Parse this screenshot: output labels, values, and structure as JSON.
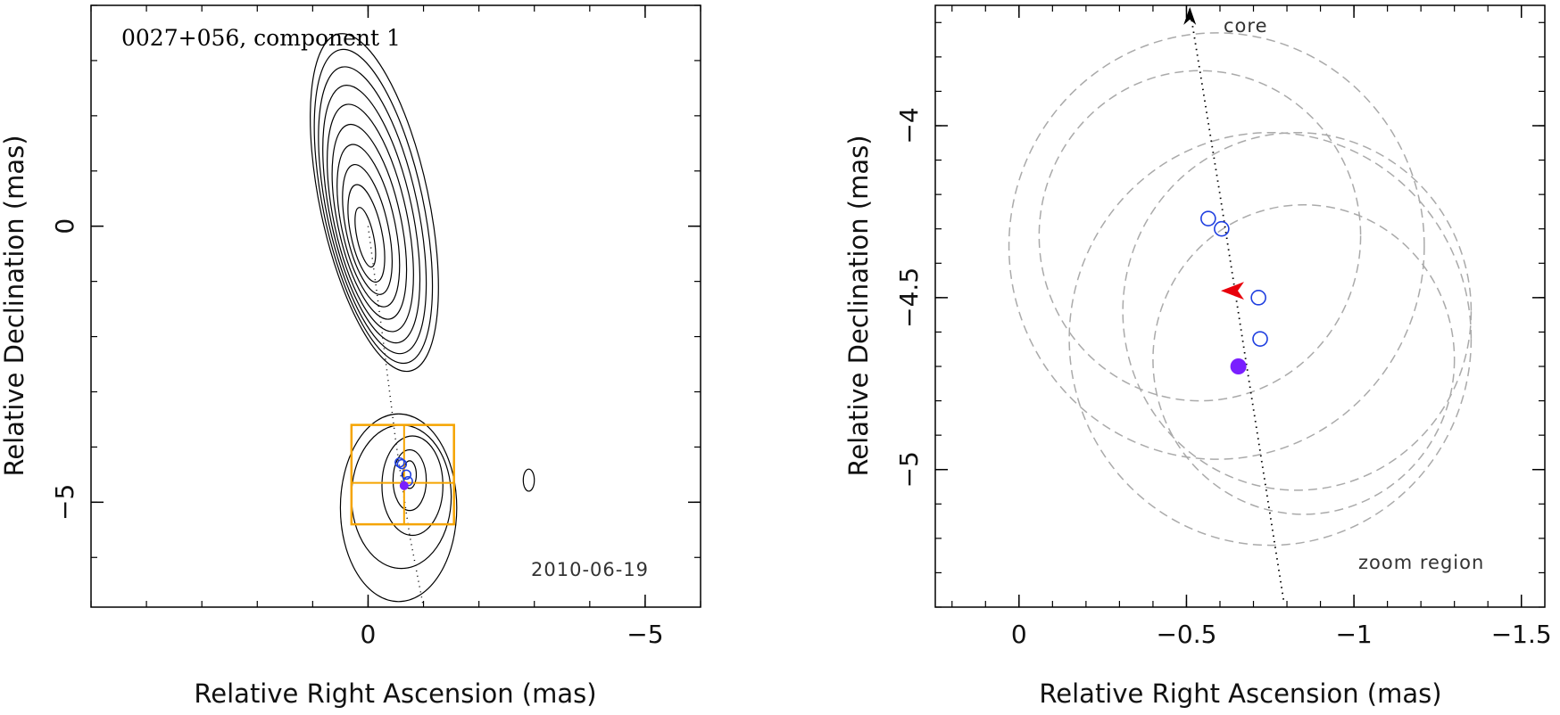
{
  "colors": {
    "contour": "#000000",
    "zoom_box": "#f5a400",
    "component_open": "#1f3fe0",
    "component_filled": "#7a1fff",
    "marker_arrow": "#e8000b",
    "error_circles": "#aaaaaa",
    "track": "#000000"
  },
  "chart_data": [
    {
      "type": "contour",
      "title": "0027+056, component 1",
      "date_label": "2010-06-19",
      "xlabel": "Relative Right Ascension (mas)",
      "ylabel": "Relative Declination (mas)",
      "xlim": [
        5,
        -6.0
      ],
      "ylim": [
        -6.9,
        4.0
      ],
      "xticks": [
        0,
        -5
      ],
      "xtick_labels": [
        "0",
        "−5"
      ],
      "yticks": [
        0,
        -5
      ],
      "ytick_labels": [
        "0",
        "−5"
      ],
      "core_contours": {
        "center": [
          0.05,
          -0.2
        ],
        "levels": [
          {
            "rx": 0.15,
            "ry": 0.55
          },
          {
            "rx": 0.28,
            "ry": 0.9
          },
          {
            "rx": 0.38,
            "ry": 1.2
          },
          {
            "rx": 0.48,
            "ry": 1.5
          },
          {
            "rx": 0.57,
            "ry": 1.8
          },
          {
            "rx": 0.66,
            "ry": 2.1
          },
          {
            "rx": 0.74,
            "ry": 2.38
          },
          {
            "rx": 0.82,
            "ry": 2.65
          },
          {
            "rx": 0.9,
            "ry": 2.9
          },
          {
            "rx": 0.98,
            "ry": 3.12
          }
        ],
        "tilt_deg": -12
      },
      "jet_contours": [
        {
          "cx": -0.75,
          "cy": -4.5,
          "rx": 0.12,
          "ry": 0.25
        },
        {
          "cx": -0.75,
          "cy": -4.6,
          "rx": 0.3,
          "ry": 0.55
        },
        {
          "cx": -0.8,
          "cy": -4.7,
          "rx": 0.55,
          "ry": 0.9
        },
        {
          "cx": -0.6,
          "cy": -4.9,
          "rx": 0.9,
          "ry": 1.3
        },
        {
          "cx": -0.55,
          "cy": -5.1,
          "rx": 1.05,
          "ry": 1.7
        }
      ],
      "outlier_contour": {
        "cx": -2.9,
        "cy": -4.6,
        "rx": 0.1,
        "ry": 0.2
      },
      "zoom_region_box": {
        "x": [
          0.3,
          -1.55
        ],
        "y": [
          -3.6,
          -5.4
        ],
        "divider_x": -0.65,
        "divider_y": -4.65
      },
      "track_points": {
        "x": [
          0.0,
          -0.25,
          -0.5,
          -0.75,
          -1.0
        ],
        "y": [
          0.0,
          -1.9,
          -3.9,
          -5.6,
          -6.9
        ]
      },
      "components_open": {
        "x": [
          -0.57,
          -0.61,
          -0.69,
          -0.72
        ],
        "y": [
          -4.28,
          -4.31,
          -4.5,
          -4.62
        ]
      },
      "component_filled": {
        "x": [
          -0.65
        ],
        "y": [
          -4.7
        ]
      }
    },
    {
      "type": "scatter",
      "xlabel": "Relative Right Ascension (mas)",
      "ylabel": "Relative Declination (mas)",
      "xlim": [
        0.25,
        -1.57
      ],
      "ylim": [
        -5.4,
        -3.65
      ],
      "xticks": [
        0,
        -0.5,
        -1,
        -1.5
      ],
      "xtick_labels": [
        "0",
        "−0.5",
        "−1",
        "−1.5"
      ],
      "yticks": [
        -4,
        -4.5,
        -5
      ],
      "ytick_labels": [
        "−4",
        "−4.5",
        "−5"
      ],
      "core_label": "core",
      "zoom_label": "zoom region",
      "track_points": {
        "x": [
          -0.51,
          -0.6,
          -0.68,
          -0.79
        ],
        "y": [
          -3.66,
          -4.2,
          -4.7,
          -5.38
        ]
      },
      "components_open": {
        "x": [
          -0.565,
          -0.605,
          -0.715,
          -0.72
        ],
        "y": [
          -4.27,
          -4.3,
          -4.5,
          -4.62
        ]
      },
      "component_filled": {
        "x": [
          -0.655
        ],
        "y": [
          -4.7
        ]
      },
      "marker_arrow": {
        "x": -0.64,
        "y": -4.48
      },
      "error_circles": [
        {
          "cx": -0.59,
          "cy": -4.35,
          "r": 0.62
        },
        {
          "cx": -0.54,
          "cy": -4.32,
          "r": 0.48
        },
        {
          "cx": -0.75,
          "cy": -4.62,
          "r": 0.6
        },
        {
          "cx": -0.83,
          "cy": -4.54,
          "r": 0.52
        },
        {
          "cx": -0.85,
          "cy": -4.68,
          "r": 0.45
        }
      ]
    }
  ]
}
